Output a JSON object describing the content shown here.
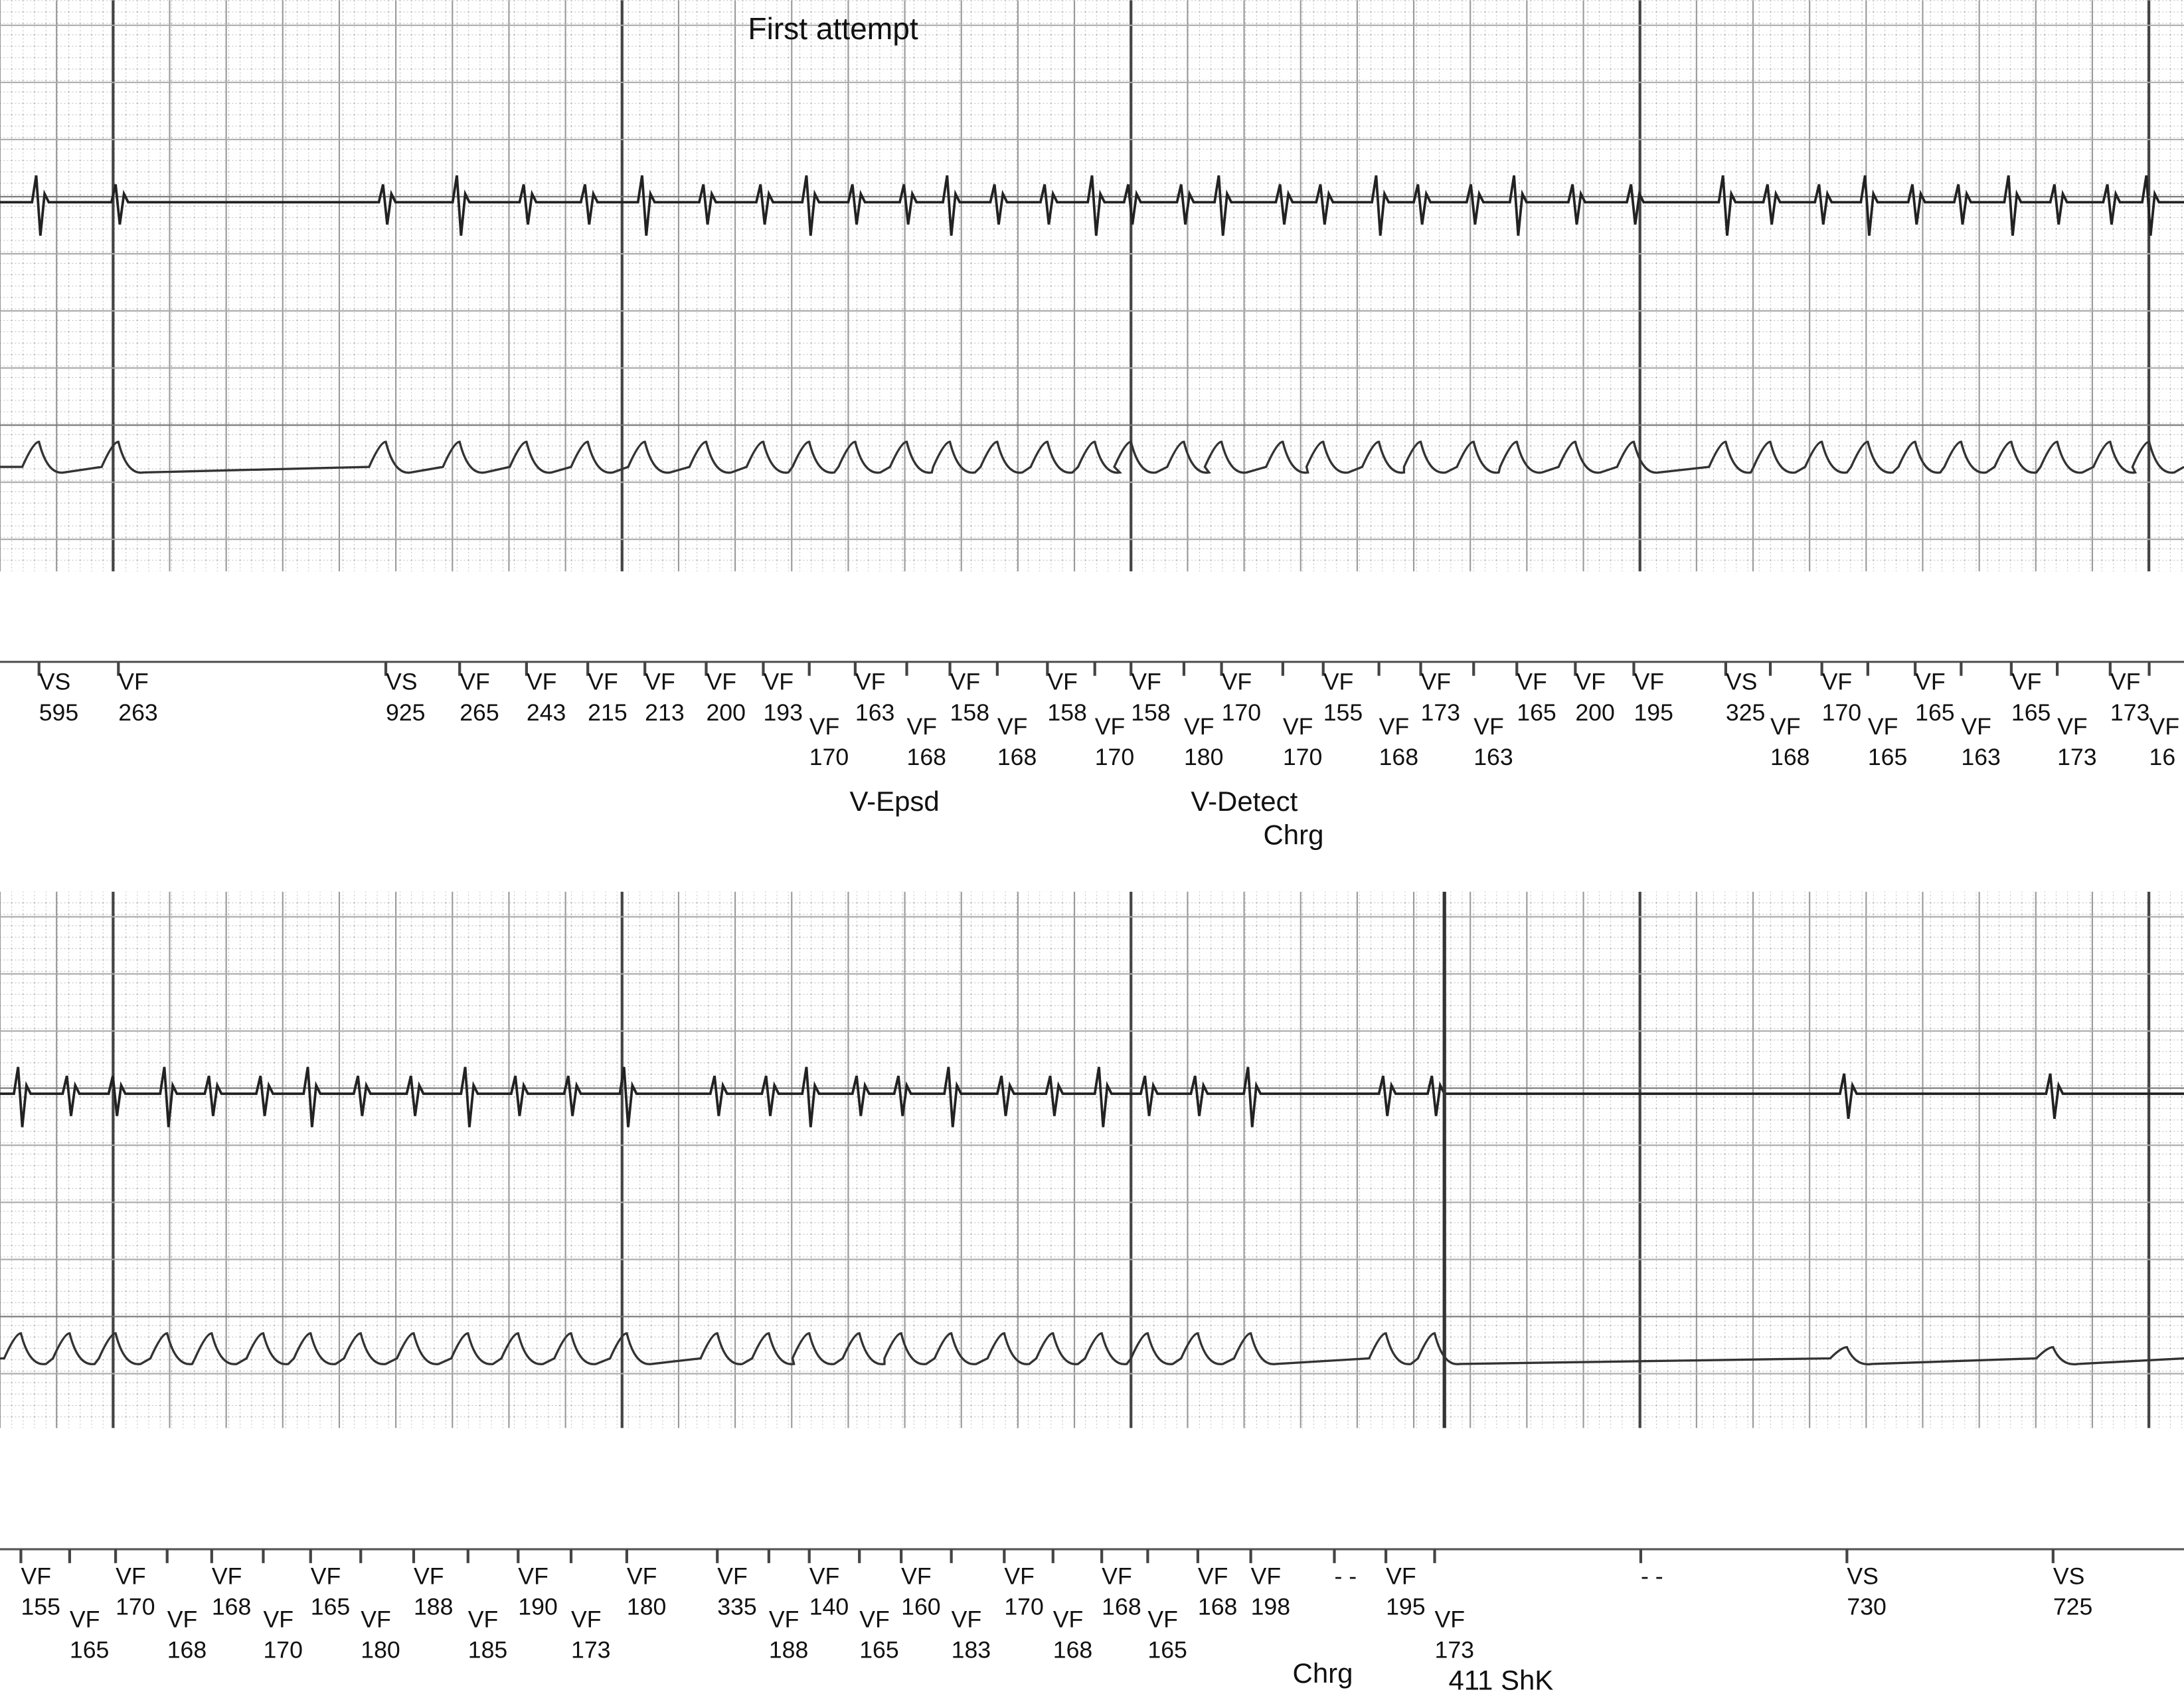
{
  "title": "First attempt",
  "strips": [
    {
      "markers": [
        {
          "label": "VS",
          "value": 595
        },
        {
          "label": "VF",
          "value": 263
        },
        {
          "label": "VS",
          "value": 925
        },
        {
          "label": "VF",
          "value": 265
        },
        {
          "label": "VF",
          "value": 243
        },
        {
          "label": "VF",
          "value": 215
        },
        {
          "label": "VF",
          "value": 213
        },
        {
          "label": "VF",
          "value": 200
        },
        {
          "label": "VF",
          "value": 193
        },
        {
          "label": "VF",
          "value": 170
        },
        {
          "label": "VF",
          "value": 163
        },
        {
          "label": "VF",
          "value": 168
        },
        {
          "label": "VF",
          "value": 158
        },
        {
          "label": "VF",
          "value": 168
        },
        {
          "label": "VF",
          "value": 158
        },
        {
          "label": "VF",
          "value": 170
        },
        {
          "label": "VF",
          "value": 158
        },
        {
          "label": "VF",
          "value": 180
        },
        {
          "label": "VF",
          "value": 170
        },
        {
          "label": "VF",
          "value": 170
        },
        {
          "label": "VF",
          "value": 155
        },
        {
          "label": "VF",
          "value": 168
        },
        {
          "label": "VF",
          "value": 173
        },
        {
          "label": "VF",
          "value": 163
        },
        {
          "label": "VF",
          "value": 165
        },
        {
          "label": "VF",
          "value": 200
        },
        {
          "label": "VF",
          "value": 195
        },
        {
          "label": "VS",
          "value": 325
        },
        {
          "label": "VF",
          "value": 168
        },
        {
          "label": "VF",
          "value": 170
        },
        {
          "label": "VF",
          "value": 165
        },
        {
          "label": "VF",
          "value": 165
        },
        {
          "label": "VF",
          "value": 163
        },
        {
          "label": "VF",
          "value": 165
        },
        {
          "label": "VF",
          "value": 173
        },
        {
          "label": "VF",
          "value": 173
        },
        {
          "label": "VF",
          "value": 16
        }
      ],
      "annotations": [
        "V-Epsd",
        "V-Detect",
        "Chrg"
      ]
    },
    {
      "markers": [
        {
          "label": "VF",
          "value": 155
        },
        {
          "label": "VF",
          "value": 165
        },
        {
          "label": "VF",
          "value": 170
        },
        {
          "label": "VF",
          "value": 168
        },
        {
          "label": "VF",
          "value": 168
        },
        {
          "label": "VF",
          "value": 170
        },
        {
          "label": "VF",
          "value": 165
        },
        {
          "label": "VF",
          "value": 180
        },
        {
          "label": "VF",
          "value": 188
        },
        {
          "label": "VF",
          "value": 185
        },
        {
          "label": "VF",
          "value": 190
        },
        {
          "label": "VF",
          "value": 173
        },
        {
          "label": "VF",
          "value": 180
        },
        {
          "label": "VF",
          "value": 335
        },
        {
          "label": "VF",
          "value": 188
        },
        {
          "label": "VF",
          "value": 140
        },
        {
          "label": "VF",
          "value": 165
        },
        {
          "label": "VF",
          "value": 160
        },
        {
          "label": "VF",
          "value": 183
        },
        {
          "label": "VF",
          "value": 170
        },
        {
          "label": "VF",
          "value": 168
        },
        {
          "label": "VF",
          "value": 168
        },
        {
          "label": "VF",
          "value": 165
        },
        {
          "label": "VF",
          "value": 168
        },
        {
          "label": "VF",
          "value": 198
        },
        {
          "label": "- -"
        },
        {
          "label": "VF",
          "value": 195
        },
        {
          "label": "VF",
          "value": 173
        },
        {
          "label": "- -"
        },
        {
          "label": "VS",
          "value": 730
        },
        {
          "label": "VS",
          "value": 725
        }
      ],
      "annotations": [
        "Chrg",
        "411 ShK"
      ]
    }
  ]
}
